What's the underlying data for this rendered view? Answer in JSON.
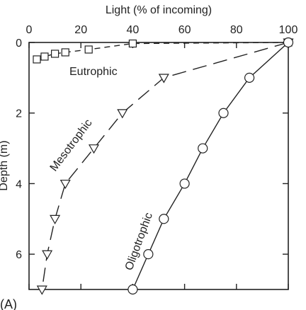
{
  "chart_data": {
    "type": "line",
    "panel_label": "(A)",
    "xlabel": "Light (% of incoming)",
    "ylabel": "Depth (m)",
    "xlim": [
      0,
      100
    ],
    "ylim": [
      0,
      7
    ],
    "x_axis_position": "top",
    "y_axis_direction": "downward",
    "x_ticks": [
      0,
      20,
      40,
      60,
      80,
      100
    ],
    "y_ticks": [
      0,
      2,
      4,
      6
    ],
    "grid": false,
    "legend": "none",
    "series": [
      {
        "name": "Eutrophic",
        "marker": "square",
        "line_style": "dashed",
        "color": "#222222",
        "points": [
          {
            "x": 100,
            "y": 0
          },
          {
            "x": 40,
            "y": 0.03
          },
          {
            "x": 23,
            "y": 0.2
          },
          {
            "x": 14,
            "y": 0.28
          },
          {
            "x": 10,
            "y": 0.32
          },
          {
            "x": 6,
            "y": 0.4
          },
          {
            "x": 3,
            "y": 0.48
          }
        ]
      },
      {
        "name": "Mesotrophic",
        "marker": "triangle-down",
        "line_style": "long-dashed",
        "color": "#222222",
        "points": [
          {
            "x": 100,
            "y": 0
          },
          {
            "x": 52,
            "y": 1.0
          },
          {
            "x": 36,
            "y": 2.0
          },
          {
            "x": 25,
            "y": 3.0
          },
          {
            "x": 14,
            "y": 4.0
          },
          {
            "x": 10,
            "y": 5.0
          },
          {
            "x": 7,
            "y": 6.0
          },
          {
            "x": 5,
            "y": 7.0
          }
        ]
      },
      {
        "name": "Oligotrophic",
        "marker": "circle",
        "line_style": "solid",
        "color": "#222222",
        "points": [
          {
            "x": 100,
            "y": 0
          },
          {
            "x": 85,
            "y": 1.0
          },
          {
            "x": 75,
            "y": 2.0
          },
          {
            "x": 67,
            "y": 3.0
          },
          {
            "x": 60,
            "y": 4.0
          },
          {
            "x": 52,
            "y": 5.0
          },
          {
            "x": 46,
            "y": 6.0
          },
          {
            "x": 40,
            "y": 7.0
          }
        ]
      }
    ]
  }
}
